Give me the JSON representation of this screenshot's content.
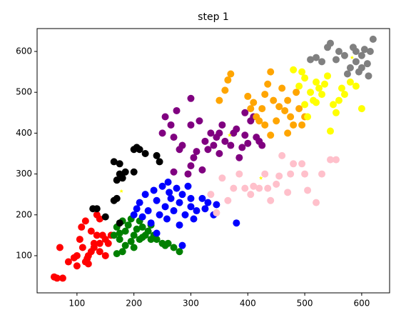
{
  "chart_data": {
    "type": "scatter",
    "title": "step 1",
    "xlim": [
      30,
      649
    ],
    "ylim": [
      9,
      656
    ],
    "xticks": [
      100,
      200,
      300,
      400,
      500,
      600
    ],
    "yticks": [
      100,
      200,
      300,
      400,
      500,
      600
    ],
    "series": [
      {
        "color": "red",
        "x": [
          60,
          65,
          75,
          70,
          85,
          95,
          100,
          105,
          108,
          115,
          110,
          115,
          120,
          125,
          125,
          130,
          135,
          135,
          140,
          140,
          145,
          150,
          155,
          150,
          120,
          130,
          140,
          160,
          100,
          118
        ],
        "values": [
          48,
          45,
          45,
          120,
          85,
          95,
          75,
          140,
          170,
          185,
          120,
          85,
          100,
          110,
          160,
          130,
          150,
          200,
          190,
          130,
          150,
          140,
          130,
          100,
          80,
          120,
          110,
          150,
          100,
          93
        ]
      },
      {
        "color": "green",
        "x": [
          165,
          170,
          170,
          175,
          180,
          180,
          185,
          190,
          195,
          195,
          200,
          205,
          210,
          210,
          215,
          220,
          225,
          230,
          235,
          240,
          250,
          255,
          260,
          270,
          280,
          185,
          200,
          215,
          230,
          175
        ],
        "values": [
          150,
          170,
          105,
          140,
          185,
          110,
          160,
          175,
          135,
          190,
          150,
          165,
          140,
          185,
          170,
          150,
          160,
          140,
          150,
          140,
          130,
          125,
          130,
          120,
          110,
          125,
          120,
          145,
          175,
          155
        ]
      },
      {
        "color": "blue",
        "x": [
          200,
          205,
          210,
          215,
          220,
          225,
          230,
          235,
          240,
          245,
          250,
          255,
          258,
          262,
          265,
          270,
          275,
          280,
          285,
          290,
          295,
          300,
          305,
          310,
          320,
          330,
          340,
          345,
          380,
          285,
          240,
          260,
          300,
          280,
          325
        ],
        "values": [
          200,
          215,
          230,
          195,
          250,
          210,
          180,
          260,
          235,
          200,
          270,
          220,
          190,
          255,
          240,
          210,
          265,
          230,
          250,
          200,
          270,
          220,
          190,
          210,
          240,
          230,
          200,
          225,
          180,
          125,
          155,
          280,
          240,
          175,
          215
        ]
      },
      {
        "color": "black",
        "x": [
          128,
          135,
          150,
          165,
          170,
          170,
          175,
          180,
          185,
          165,
          175,
          200,
          205,
          210,
          220,
          200,
          245,
          240,
          175
        ],
        "values": [
          215,
          215,
          195,
          235,
          240,
          285,
          300,
          290,
          305,
          330,
          325,
          360,
          365,
          360,
          350,
          305,
          330,
          345,
          180
        ]
      },
      {
        "color": "purple",
        "x": [
          250,
          255,
          265,
          270,
          275,
          280,
          285,
          295,
          300,
          300,
          305,
          310,
          315,
          320,
          325,
          330,
          335,
          340,
          345,
          350,
          355,
          360,
          370,
          375,
          380,
          390,
          395,
          400,
          405,
          410,
          415,
          420,
          425,
          395,
          385,
          270,
          350,
          300
        ],
        "values": [
          400,
          440,
          420,
          390,
          455,
          360,
          370,
          300,
          420,
          485,
          340,
          355,
          430,
          310,
          380,
          360,
          400,
          370,
          390,
          350,
          420,
          380,
          370,
          400,
          410,
          365,
          395,
          375,
          430,
          440,
          390,
          380,
          370,
          450,
          340,
          305,
          400,
          320
        ]
      },
      {
        "color": "pink",
        "x": [
          335,
          345,
          355,
          365,
          375,
          385,
          405,
          410,
          420,
          430,
          435,
          450,
          455,
          470,
          475,
          480,
          495,
          500,
          505,
          520,
          530,
          545,
          555,
          460,
          440,
          395
        ],
        "values": [
          250,
          205,
          290,
          235,
          265,
          300,
          250,
          270,
          265,
          300,
          265,
          275,
          295,
          255,
          300,
          325,
          325,
          300,
          260,
          230,
          300,
          335,
          335,
          345,
          235,
          265
        ]
      },
      {
        "color": "orange",
        "x": [
          350,
          360,
          365,
          370,
          400,
          405,
          410,
          415,
          420,
          425,
          430,
          435,
          440,
          445,
          450,
          460,
          465,
          470,
          475,
          480,
          485,
          490,
          495,
          500,
          440,
          455,
          430,
          470
        ],
        "values": [
          480,
          505,
          530,
          545,
          490,
          460,
          475,
          440,
          430,
          460,
          495,
          520,
          550,
          480,
          430,
          510,
          455,
          400,
          440,
          420,
          500,
          460,
          420,
          440,
          395,
          465,
          420,
          480
        ]
      },
      {
        "color": "yellow",
        "x": [
          480,
          490,
          495,
          500,
          505,
          510,
          515,
          520,
          525,
          530,
          535,
          540,
          545,
          550,
          555,
          560,
          565,
          570,
          580,
          590,
          600,
          520,
          500
        ],
        "values": [
          555,
          515,
          550,
          470,
          440,
          500,
          480,
          525,
          510,
          495,
          520,
          540,
          405,
          470,
          450,
          480,
          510,
          495,
          525,
          515,
          460,
          475,
          535
        ]
      },
      {
        "color": "gray",
        "x": [
          510,
          520,
          530,
          540,
          545,
          555,
          560,
          570,
          580,
          585,
          590,
          595,
          600,
          605,
          610,
          615,
          620,
          612,
          600,
          575,
          590
        ],
        "values": [
          580,
          585,
          575,
          610,
          620,
          580,
          600,
          590,
          560,
          610,
          575,
          550,
          590,
          605,
          570,
          600,
          630,
          540,
          560,
          545,
          600
        ]
      },
      {
        "color": "yellow",
        "marker": "star",
        "x": [
          178,
          368,
          423,
          583
        ],
        "values": [
          258,
          395,
          290,
          585
        ]
      }
    ]
  }
}
